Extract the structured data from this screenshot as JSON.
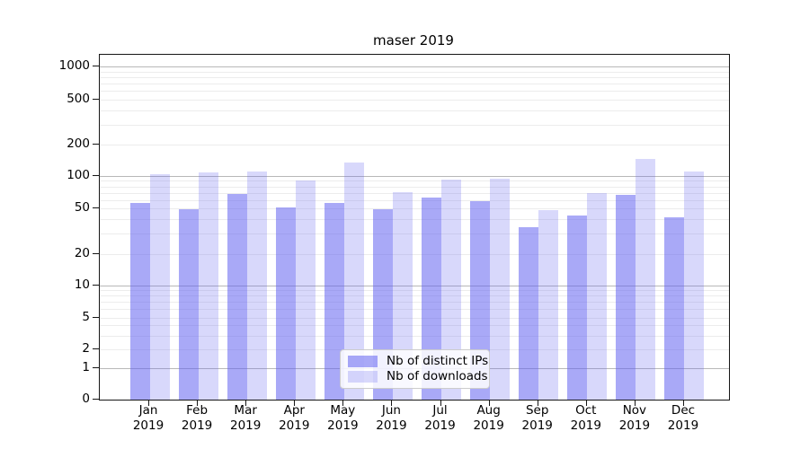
{
  "chart_data": {
    "type": "bar",
    "title": "maser 2019",
    "categories": [
      "Jan",
      "Feb",
      "Mar",
      "Apr",
      "May",
      "Jun",
      "Jul",
      "Aug",
      "Sep",
      "Oct",
      "Nov",
      "Dec"
    ],
    "x_year_label": "2019",
    "series": [
      {
        "name": "Nb of distinct IPs",
        "values": [
          56,
          49,
          68,
          51,
          56,
          49,
          63,
          58,
          34,
          43,
          67,
          42
        ]
      },
      {
        "name": "Nb of downloads",
        "values": [
          105,
          108,
          111,
          91,
          134,
          71,
          93,
          95,
          48,
          70,
          147,
          110
        ]
      }
    ],
    "yscale": "symlog",
    "y_ticks": [
      0,
      1,
      2,
      5,
      10,
      20,
      50,
      100,
      200,
      500,
      1000
    ],
    "ylim": [
      0,
      1280
    ],
    "grid": true,
    "legend_position": "lower-center",
    "colors": {
      "bar_distinct_ips": "rgba(98,98,240,0.55)",
      "bar_downloads": "rgba(98,98,240,0.25)",
      "grid_major": "#b8b8b8",
      "grid_minor": "#ececec",
      "axis": "#161616",
      "text": "#000000"
    }
  }
}
